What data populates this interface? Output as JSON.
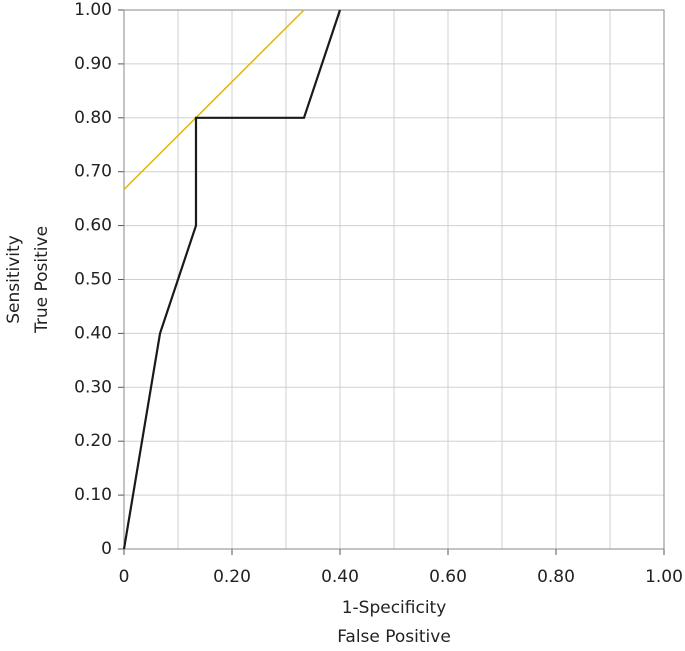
{
  "chart_data": {
    "type": "line",
    "xlabel": [
      "1-Specificity",
      "False Positive"
    ],
    "ylabel": [
      "Sensitivity",
      "True Positive"
    ],
    "xlim": [
      0,
      1
    ],
    "ylim": [
      0,
      1
    ],
    "xticks": [
      0,
      {
        "value": 0.2,
        "label": "0.20"
      },
      {
        "value": 0.4,
        "label": "0.40"
      },
      {
        "value": 0.6,
        "label": "0.60"
      },
      {
        "value": 0.8,
        "label": "0.80"
      },
      {
        "value": 1,
        "label": "1.00"
      }
    ],
    "xminor": [
      0.1,
      0.3,
      0.5,
      0.7,
      0.9
    ],
    "yticks": [
      0,
      {
        "value": 0.1,
        "label": "0.10"
      },
      {
        "value": 0.2,
        "label": "0.20"
      },
      {
        "value": 0.3,
        "label": "0.30"
      },
      {
        "value": 0.4,
        "label": "0.40"
      },
      {
        "value": 0.5,
        "label": "0.50"
      },
      {
        "value": 0.6,
        "label": "0.60"
      },
      {
        "value": 0.7,
        "label": "0.70"
      },
      {
        "value": 0.8,
        "label": "0.80"
      },
      {
        "value": 0.9,
        "label": "0.90"
      },
      {
        "value": 1,
        "label": "1.00"
      }
    ],
    "grid": true,
    "series": [
      {
        "color": "#1a1a1a",
        "x": [
          0,
          0.0667,
          0.1333,
          0.1333,
          0.3333,
          0.4
        ],
        "values": [
          0,
          0.4,
          0.6,
          0.8,
          0.8,
          1
        ]
      },
      {
        "color": "#e0b800",
        "x": [
          0,
          0.3333
        ],
        "values": [
          0.667,
          1
        ]
      }
    ]
  }
}
